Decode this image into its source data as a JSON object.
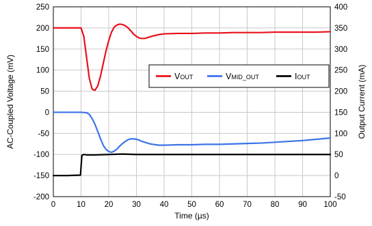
{
  "chart_data": {
    "type": "line",
    "xlabel": "Time (µs)",
    "ylabel_left": "AC-Coupled Voltage (mV)",
    "ylabel_right": "Output Current (mA)",
    "xlim": [
      0,
      100
    ],
    "xticks": [
      0,
      10,
      20,
      30,
      40,
      50,
      60,
      70,
      80,
      90,
      100
    ],
    "ylim_left": [
      -200,
      250
    ],
    "yticks_left": [
      -200,
      -150,
      -100,
      -50,
      0,
      50,
      100,
      150,
      200,
      250
    ],
    "ylim_right": [
      -50,
      400
    ],
    "yticks_right": [
      -50,
      0,
      50,
      100,
      150,
      200,
      250,
      300,
      350,
      400
    ],
    "grid": true,
    "legend_position": "top-right",
    "series": [
      {
        "name": "VOUT",
        "legend_main": "V",
        "legend_sub": "OUT",
        "axis": "left",
        "color": "#e8101a",
        "x": [
          0,
          5,
          10,
          11,
          12,
          13,
          14,
          15,
          16,
          17,
          18,
          19,
          20,
          21,
          22,
          23,
          24,
          25,
          26,
          27,
          28,
          29,
          30,
          31,
          32,
          33,
          34,
          35,
          36,
          38,
          40,
          45,
          50,
          55,
          60,
          65,
          70,
          75,
          80,
          85,
          90,
          95,
          100
        ],
        "y": [
          200,
          200,
          200,
          180,
          130,
          80,
          55,
          52,
          62,
          85,
          115,
          145,
          170,
          190,
          202,
          207,
          209,
          208,
          205,
          200,
          193,
          185,
          180,
          176,
          175,
          175,
          177,
          179,
          181,
          184,
          186,
          187,
          187,
          188,
          188,
          189,
          189,
          189,
          190,
          190,
          190,
          190,
          191
        ]
      },
      {
        "name": "VMID_OUT",
        "legend_main": "V",
        "legend_sub": "MID_OUT",
        "axis": "left",
        "color": "#3a73e8",
        "x": [
          0,
          5,
          10,
          12,
          13,
          14,
          15,
          16,
          17,
          18,
          19,
          20,
          21,
          22,
          23,
          24,
          25,
          26,
          27,
          28,
          29,
          30,
          31,
          32,
          33,
          34,
          35,
          36,
          37,
          38,
          40,
          45,
          50,
          55,
          60,
          65,
          70,
          75,
          80,
          85,
          90,
          95,
          100
        ],
        "y": [
          0,
          0,
          0,
          -1,
          -5,
          -15,
          -28,
          -45,
          -62,
          -78,
          -88,
          -93,
          -95,
          -92,
          -87,
          -80,
          -74,
          -69,
          -65,
          -63,
          -63,
          -64,
          -66,
          -69,
          -71,
          -73,
          -75,
          -76,
          -77,
          -78,
          -78,
          -77,
          -77,
          -76,
          -76,
          -75,
          -74,
          -73,
          -71,
          -69,
          -67,
          -64,
          -61
        ]
      },
      {
        "name": "IOUT",
        "legend_main": "I",
        "legend_sub": "OUT",
        "axis": "right",
        "color": "#000000",
        "x": [
          0,
          5,
          9.8,
          10.3,
          11,
          12,
          15,
          20,
          25,
          30,
          35,
          40,
          45,
          50,
          55,
          60,
          65,
          70,
          75,
          80,
          85,
          90,
          95,
          100
        ],
        "y": [
          0,
          0,
          1,
          48,
          50,
          49,
          49,
          50,
          51,
          50,
          50,
          50,
          50,
          50,
          50,
          50,
          50,
          50,
          50,
          50,
          50,
          50,
          50,
          50
        ]
      }
    ]
  }
}
